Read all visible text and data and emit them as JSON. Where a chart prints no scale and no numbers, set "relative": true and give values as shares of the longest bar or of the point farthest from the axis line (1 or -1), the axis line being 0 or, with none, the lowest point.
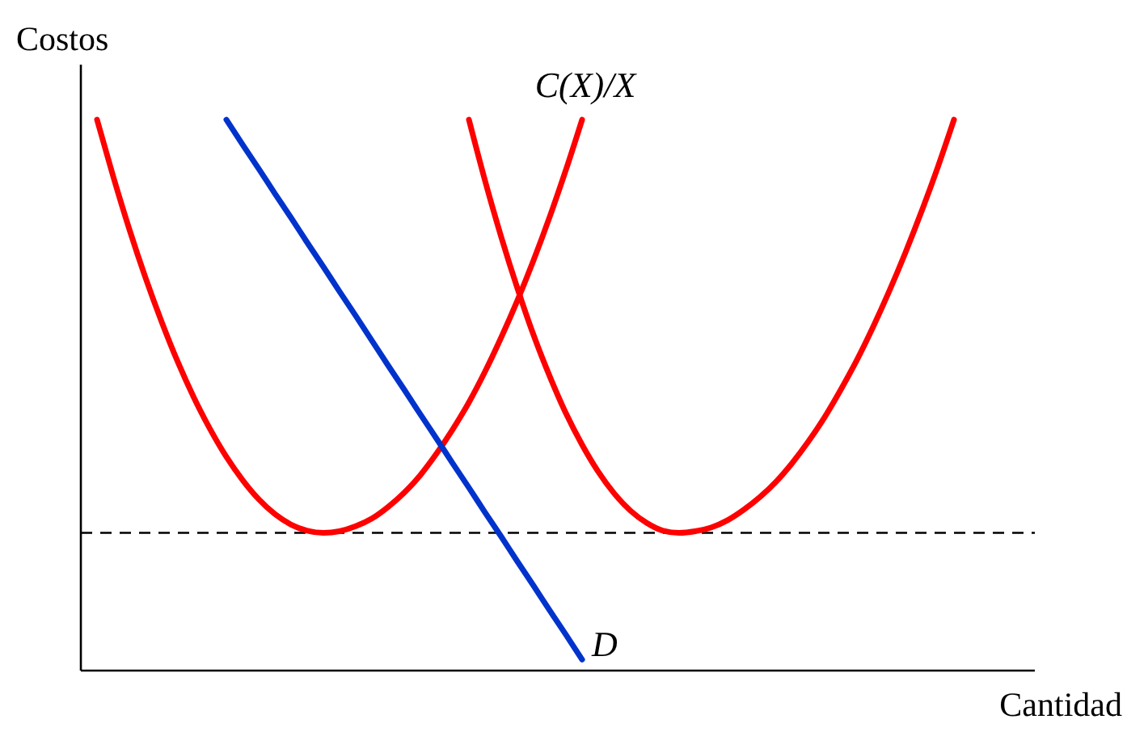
{
  "chart_data": {
    "type": "line",
    "relative": true,
    "xlabel": "Cantidad",
    "ylabel": "Costos",
    "categories": [
      null,
      null,
      null,
      null,
      null,
      null,
      null,
      null,
      null,
      null,
      null,
      null,
      null,
      null,
      null,
      null,
      null,
      null,
      null,
      null,
      null,
      null,
      null,
      null,
      null,
      null,
      null,
      null,
      null,
      null,
      null,
      null,
      null,
      null,
      null,
      null,
      null,
      null,
      null,
      null,
      null,
      null,
      null,
      null,
      null,
      null,
      null,
      null,
      null,
      null,
      null,
      null,
      null,
      null,
      null,
      null,
      null,
      null,
      null,
      null
    ],
    "series": [
      {
        "name": "C(X)/X",
        "color": "#ff0000",
        "values": [
          null,
          1.0,
          0.897,
          0.801,
          0.713,
          0.633,
          0.56,
          0.495,
          0.438,
          0.388,
          0.346,
          0.311,
          0.284,
          0.265,
          0.254,
          0.25,
          0.253,
          0.262,
          0.276,
          0.297,
          0.323,
          0.355,
          0.394,
          0.438,
          0.487,
          0.543,
          0.605,
          0.672,
          0.745,
          0.824,
          0.909,
          1.0,
          null,
          null,
          null,
          null,
          null,
          null,
          null,
          null,
          null,
          null,
          null,
          null,
          null,
          null,
          null,
          null,
          null,
          null,
          null,
          null,
          null,
          null,
          null,
          null,
          null,
          null,
          null,
          null
        ]
      },
      {
        "color": "#ff0000",
        "values": [
          null,
          null,
          null,
          null,
          null,
          null,
          null,
          null,
          null,
          null,
          null,
          null,
          null,
          null,
          null,
          null,
          null,
          null,
          null,
          null,
          null,
          null,
          null,
          null,
          1.0,
          0.889,
          0.787,
          0.694,
          0.609,
          0.534,
          0.467,
          0.41,
          0.361,
          0.321,
          0.29,
          0.268,
          0.254,
          0.25,
          0.253,
          0.26,
          0.273,
          0.292,
          0.315,
          0.343,
          0.377,
          0.416,
          0.46,
          0.51,
          0.564,
          0.624,
          0.689,
          0.759,
          0.834,
          0.914,
          1.0,
          null,
          null,
          null,
          null,
          null
        ]
      },
      {
        "name": "D",
        "color": "#0033cc",
        "values": [
          null,
          null,
          null,
          null,
          null,
          null,
          null,
          null,
          null,
          1.0,
          0.955,
          0.911,
          0.866,
          0.822,
          0.777,
          0.733,
          0.688,
          0.644,
          0.599,
          0.554,
          0.51,
          0.465,
          0.421,
          0.376,
          0.332,
          0.287,
          0.243,
          0.198,
          0.154,
          0.109,
          0.065,
          0.02,
          null,
          null,
          null,
          null,
          null,
          null,
          null,
          null,
          null,
          null,
          null,
          null,
          null,
          null,
          null,
          null,
          null,
          null,
          null,
          null,
          null,
          null,
          null,
          null,
          null,
          null,
          null,
          null
        ]
      }
    ],
    "ref_lines": [
      {
        "axis": "y",
        "value": 0.25,
        "color": "#000000",
        "line_style": "dashed"
      }
    ],
    "legend": false,
    "grid": false
  }
}
